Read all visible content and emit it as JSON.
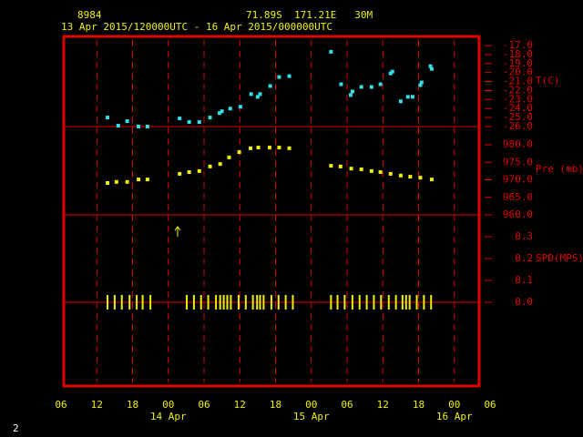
{
  "header": {
    "station": "8984",
    "location": "71.89S  171.21E   30M",
    "period": "13 Apr 2015/120000UTC - 16 Apr 2015/000000UTC"
  },
  "x_axis": {
    "xlim": [
      6,
      78
    ],
    "xticks": [
      {
        "value": 6,
        "label": "06"
      },
      12,
      18,
      {
        "value": 24,
        "label": "00"
      },
      {
        "value": 30,
        "label": "06"
      },
      {
        "value": 36,
        "label": "12"
      },
      {
        "value": 42,
        "label": "18"
      },
      {
        "value": 48,
        "label": "00"
      },
      {
        "value": 54,
        "label": "06"
      },
      {
        "value": 60,
        "label": "12"
      },
      {
        "value": 66,
        "label": "18"
      },
      {
        "value": 72,
        "label": "00"
      },
      {
        "value": 78,
        "label": "06"
      }
    ],
    "date_labels": [
      {
        "value": 24,
        "label": "14 Apr"
      },
      {
        "value": 48,
        "label": "15 Apr"
      },
      {
        "value": 72,
        "label": "16 Apr"
      }
    ]
  },
  "chart_data": [
    {
      "type": "scatter",
      "marker": "square",
      "y_label": "T(C)",
      "color": "#33e0e8",
      "x": [
        13.8,
        15.6,
        17.1,
        19.0,
        20.5,
        25.9,
        27.5,
        29.2,
        31.0,
        32.6,
        33.0,
        34.4,
        36.1,
        37.9,
        39.0,
        39.4,
        41.1,
        42.6,
        44.3,
        51.3,
        53.0,
        54.6,
        54.9,
        56.4,
        58.1,
        59.6,
        61.3,
        61.6,
        63.0,
        64.2,
        65.0,
        66.3,
        66.5,
        68.0,
        68.2
      ],
      "values": [
        -25.0,
        -25.9,
        -25.4,
        -26.0,
        -26.0,
        -25.1,
        -25.5,
        -25.5,
        -25.0,
        -24.5,
        -24.3,
        -24.0,
        -23.8,
        -22.4,
        -22.7,
        -22.4,
        -21.5,
        -20.5,
        -20.4,
        -17.7,
        -21.3,
        -22.5,
        -22.1,
        -21.6,
        -21.6,
        -21.3,
        -20.1,
        -19.9,
        -23.2,
        -22.7,
        -22.7,
        -21.4,
        -21.1,
        -19.3,
        -19.6
      ],
      "ylim": [
        -26,
        -17
      ],
      "yticks": [
        {
          "value": -17,
          "label": "-17.0"
        },
        {
          "value": -18,
          "label": "-18.0"
        },
        {
          "value": -19,
          "label": "-19.0"
        },
        {
          "value": -20,
          "label": "-20.0"
        },
        {
          "value": -21,
          "label": "-21.0"
        },
        {
          "value": -22,
          "label": "-22.0"
        },
        {
          "value": -23,
          "label": "-23.0"
        },
        {
          "value": -24,
          "label": "-24.0"
        },
        {
          "value": -25,
          "label": "-25.0"
        },
        {
          "value": -26,
          "label": "-26.0"
        }
      ]
    },
    {
      "type": "scatter",
      "marker": "square",
      "y_label": "Pre (mb)",
      "color": "#f0f000",
      "x": [
        13.8,
        15.3,
        17.1,
        19.0,
        20.5,
        25.9,
        27.5,
        29.2,
        31.0,
        32.7,
        34.2,
        35.9,
        37.8,
        39.1,
        41.0,
        42.6,
        44.3,
        51.3,
        52.9,
        54.7,
        56.4,
        58.1,
        59.6,
        61.3,
        63.0,
        64.6,
        66.3,
        68.2
      ],
      "values": [
        969.1,
        969.4,
        969.4,
        970.1,
        970.1,
        971.7,
        972.2,
        972.5,
        973.8,
        974.5,
        976.4,
        977.9,
        979.0,
        979.2,
        979.2,
        979.2,
        979.0,
        974.0,
        973.8,
        973.2,
        973.0,
        972.5,
        972.2,
        971.7,
        971.2,
        970.9,
        970.6,
        970.1
      ],
      "ylim": [
        960,
        980
      ],
      "yticks": [
        {
          "value": 980,
          "label": "980.0"
        },
        {
          "value": 975,
          "label": "975.0"
        },
        {
          "value": 970,
          "label": "970.0"
        },
        {
          "value": 965,
          "label": "965.0"
        },
        {
          "value": 960,
          "label": "960.0"
        }
      ]
    },
    {
      "type": "scatter",
      "marker": "vline",
      "y_label": "SPD(MPS)",
      "color": "#f0f000",
      "x": [
        13.8,
        15.0,
        16.2,
        17.5,
        18.7,
        19.7,
        21.0,
        27.1,
        28.3,
        29.5,
        30.7,
        32.0,
        32.7,
        33.3,
        33.9,
        34.5,
        35.8,
        37.0,
        38.2,
        38.9,
        39.4,
        40.0,
        41.3,
        42.5,
        43.7,
        44.9,
        51.3,
        52.4,
        53.6,
        54.9,
        56.1,
        57.3,
        58.5,
        59.7,
        61.0,
        62.2,
        63.3,
        63.9,
        64.5,
        65.7,
        66.9,
        68.1
      ],
      "values": [
        0,
        0,
        0,
        0,
        0,
        0,
        0,
        0,
        0,
        0,
        0,
        0,
        0,
        0,
        0,
        0,
        0,
        0,
        0,
        0,
        0,
        0,
        0,
        0,
        0,
        0,
        0,
        0,
        0,
        0,
        0,
        0,
        0,
        0,
        0,
        0,
        0,
        0,
        0,
        0,
        0,
        0
      ],
      "ylim": [
        0,
        0.3
      ],
      "yticks": [
        0.3,
        0.2,
        0.1,
        {
          "value": 0,
          "label": "0.0"
        }
      ]
    }
  ],
  "footer": "2"
}
